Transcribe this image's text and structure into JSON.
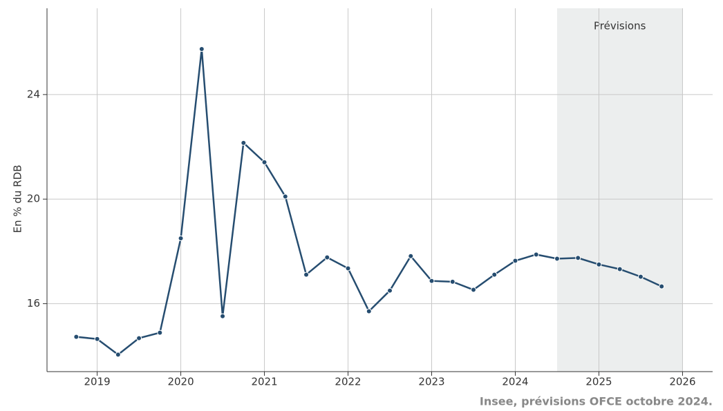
{
  "chart_data": {
    "type": "line",
    "ylabel": "En % du RDB",
    "source": "Insee, prévisions OFCE octobre 2024.",
    "shaded": {
      "range": [
        2024.5,
        2026
      ],
      "label": "Prévisions",
      "color": "#eceeee"
    },
    "xlim": [
      2018.4,
      2026.36
    ],
    "xticks": [
      2019,
      2020,
      2021,
      2022,
      2023,
      2024,
      2025,
      2026
    ],
    "ylim": [
      13.4,
      27.3
    ],
    "yticks": [
      16,
      20,
      24
    ],
    "grid": true,
    "color": "#264d70",
    "x": [
      2018.75,
      2019,
      2019.25,
      2019.5,
      2019.75,
      2020,
      2020.25,
      2020.5,
      2020.75,
      2021,
      2021.25,
      2021.5,
      2021.75,
      2022,
      2022.25,
      2022.5,
      2022.75,
      2023,
      2023.25,
      2023.5,
      2023.75,
      2024,
      2024.25,
      2024.5,
      2024.75,
      2025,
      2025.25,
      2025.5,
      2025.75
    ],
    "values": [
      14.73,
      14.65,
      14.05,
      14.68,
      14.89,
      18.5,
      25.74,
      15.52,
      22.15,
      21.41,
      20.1,
      17.11,
      17.77,
      17.35,
      15.71,
      16.5,
      17.82,
      16.87,
      16.84,
      16.53,
      17.11,
      17.64,
      17.88,
      17.72,
      17.75,
      17.5,
      17.32,
      17.03,
      16.66
    ]
  }
}
